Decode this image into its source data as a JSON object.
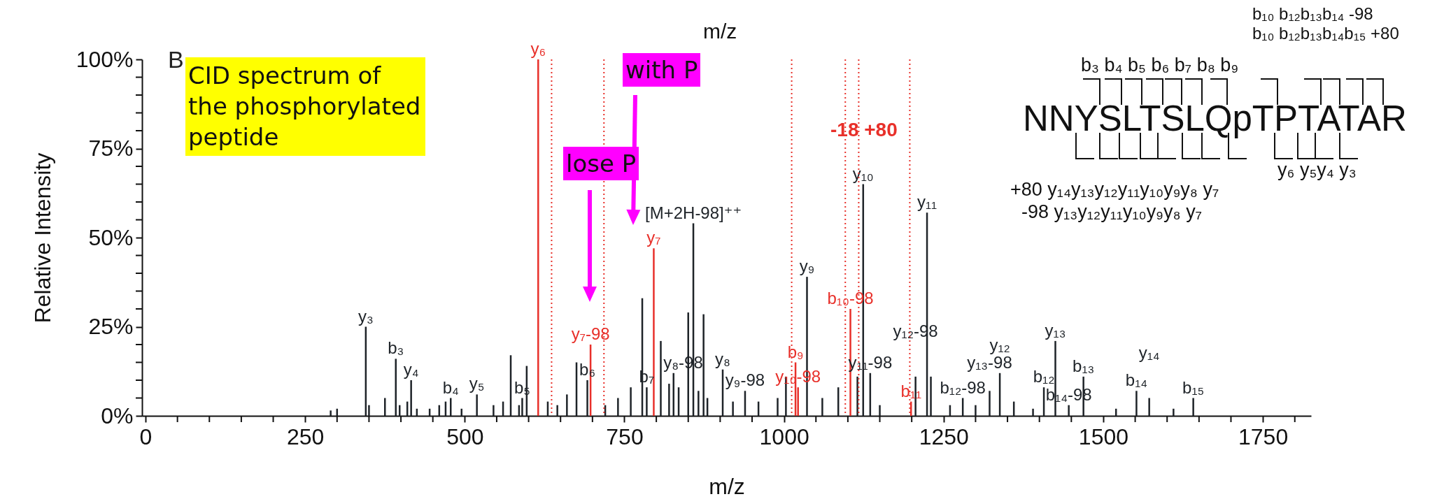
{
  "chart_data": {
    "type": "bar",
    "xlabel": "m/z",
    "ylabel": "Relative Intensity",
    "xlim": [
      0,
      1820
    ],
    "ylim": [
      0,
      100
    ],
    "xticks": [
      0,
      {
        "value": 50,
        "label": null
      },
      {
        "value": 100,
        "label": null
      },
      {
        "value": 150,
        "label": null
      },
      {
        "value": 200,
        "label": null
      },
      250,
      {
        "value": 300,
        "label": null
      },
      {
        "value": 350,
        "label": null
      },
      {
        "value": 400,
        "label": null
      },
      {
        "value": 450,
        "label": null
      },
      500,
      {
        "value": 550,
        "label": null
      },
      {
        "value": 600,
        "label": null
      },
      {
        "value": 650,
        "label": null
      },
      {
        "value": 700,
        "label": null
      },
      750,
      {
        "value": 800,
        "label": null
      },
      {
        "value": 850,
        "label": null
      },
      {
        "value": 900,
        "label": null
      },
      {
        "value": 950,
        "label": null
      },
      1000,
      {
        "value": 1050,
        "label": null
      },
      {
        "value": 1100,
        "label": null
      },
      {
        "value": 1150,
        "label": null
      },
      {
        "value": 1200,
        "label": null
      },
      1250,
      {
        "value": 1300,
        "label": null
      },
      {
        "value": 1350,
        "label": null
      },
      {
        "value": 1400,
        "label": null
      },
      {
        "value": 1450,
        "label": null
      },
      1500,
      {
        "value": 1550,
        "label": null
      },
      {
        "value": 1600,
        "label": null
      },
      {
        "value": 1650,
        "label": null
      },
      {
        "value": 1700,
        "label": null
      },
      1750,
      {
        "value": 1800,
        "label": null
      }
    ],
    "yticks": [
      {
        "value": 0,
        "label": "0%"
      },
      {
        "value": 5,
        "label": null
      },
      {
        "value": 10,
        "label": null
      },
      {
        "value": 15,
        "label": null
      },
      {
        "value": 20,
        "label": null
      },
      {
        "value": 25,
        "label": "25%"
      },
      {
        "value": 30,
        "label": null
      },
      {
        "value": 35,
        "label": null
      },
      {
        "value": 40,
        "label": null
      },
      {
        "value": 45,
        "label": null
      },
      {
        "value": 50,
        "label": "50%"
      },
      {
        "value": 55,
        "label": null
      },
      {
        "value": 60,
        "label": null
      },
      {
        "value": 65,
        "label": null
      },
      {
        "value": 70,
        "label": null
      },
      {
        "value": 75,
        "label": "75%"
      },
      {
        "value": 80,
        "label": null
      },
      {
        "value": 85,
        "label": null
      },
      {
        "value": 90,
        "label": null
      },
      {
        "value": 95,
        "label": null
      },
      {
        "value": 100,
        "label": "100%"
      }
    ],
    "x": [
      290,
      300,
      345,
      350,
      375,
      392,
      398,
      410,
      416,
      425,
      445,
      460,
      470,
      478,
      495,
      519,
      545,
      560,
      572,
      585,
      590,
      597,
      615,
      630,
      645,
      660,
      675,
      692,
      697,
      720,
      740,
      760,
      778,
      785,
      796,
      807,
      820,
      827,
      835,
      850,
      858,
      866,
      874,
      880,
      904,
      920,
      939,
      960,
      990,
      1003,
      1018,
      1022,
      1036,
      1060,
      1085,
      1104,
      1115,
      1124,
      1135,
      1150,
      1199,
      1206,
      1224,
      1230,
      1260,
      1280,
      1300,
      1322,
      1338,
      1360,
      1390,
      1407,
      1425,
      1446,
      1469,
      1520,
      1552,
      1572,
      1610,
      1641
    ],
    "values": [
      1.5,
      2,
      25,
      3,
      5,
      16,
      3,
      4,
      10,
      2,
      2,
      3,
      4,
      5,
      2,
      6,
      3,
      4,
      17,
      3,
      5,
      14,
      100,
      4,
      3,
      6,
      15,
      10,
      20,
      3,
      5,
      8,
      33,
      8,
      47,
      21,
      9,
      12,
      8,
      29,
      54,
      7,
      28.5,
      5,
      13,
      4,
      7,
      4,
      5,
      11,
      15,
      8,
      39,
      5,
      8,
      30,
      11,
      65,
      12,
      3,
      4,
      11,
      57,
      11,
      3,
      5,
      3,
      7,
      12,
      4,
      2,
      8,
      21,
      3,
      11,
      2,
      7,
      5,
      2,
      5
    ],
    "colors": [
      "#1e2328",
      "#1e2328",
      "#1e2328",
      "#1e2328",
      "#1e2328",
      "#1e2328",
      "#1e2328",
      "#1e2328",
      "#1e2328",
      "#1e2328",
      "#1e2328",
      "#1e2328",
      "#1e2328",
      "#1e2328",
      "#1e2328",
      "#1e2328",
      "#1e2328",
      "#1e2328",
      "#1e2328",
      "#1e2328",
      "#1e2328",
      "#1e2328",
      "#e8302a",
      "#1e2328",
      "#1e2328",
      "#1e2328",
      "#1e2328",
      "#1e2328",
      "#e8302a",
      "#1e2328",
      "#1e2328",
      "#1e2328",
      "#1e2328",
      "#1e2328",
      "#e8302a",
      "#1e2328",
      "#1e2328",
      "#1e2328",
      "#1e2328",
      "#1e2328",
      "#1e2328",
      "#1e2328",
      "#1e2328",
      "#1e2328",
      "#1e2328",
      "#1e2328",
      "#1e2328",
      "#1e2328",
      "#1e2328",
      "#1e2328",
      "#e8302a",
      "#e8302a",
      "#1e2328",
      "#1e2328",
      "#1e2328",
      "#e8302a",
      "#1e2328",
      "#1e2328",
      "#1e2328",
      "#1e2328",
      "#e8302a",
      "#1e2328",
      "#1e2328",
      "#1e2328",
      "#1e2328",
      "#1e2328",
      "#1e2328",
      "#1e2328",
      "#1e2328",
      "#1e2328",
      "#1e2328",
      "#1e2328",
      "#1e2328",
      "#1e2328",
      "#1e2328",
      "#1e2328",
      "#1e2328",
      "#1e2328",
      "#1e2328",
      "#1e2328"
    ],
    "value_labels": [
      null,
      null,
      "y₃",
      null,
      null,
      "b₃",
      null,
      null,
      "y₄",
      null,
      null,
      null,
      null,
      "b₄",
      null,
      "y₅",
      null,
      null,
      null,
      null,
      "b₅",
      null,
      "y₆",
      null,
      null,
      null,
      null,
      "b₆",
      "y₇-98",
      null,
      null,
      null,
      null,
      "b₇",
      "y₇",
      null,
      null,
      "y₈-98",
      null,
      null,
      "[M+2H-98]⁺⁺",
      null,
      null,
      null,
      "y₈",
      null,
      "y₉-98",
      null,
      null,
      null,
      "b₉",
      "y₁₀-98",
      "y₉",
      null,
      null,
      "b₁₀-98",
      null,
      "y₁₀",
      "y₁₁-98",
      null,
      "b₁₁",
      "y₁₂-98",
      "y₁₁",
      null,
      null,
      "b₁₂-98",
      null,
      "y₁₃-98",
      "y₁₂",
      null,
      null,
      "b₁₂",
      "y₁₃",
      "b₁₄-98",
      "b₁₃",
      null,
      "b₁₄",
      "y₁₄",
      null,
      "b₁₅"
    ],
    "ref_lines": [
      {
        "axis": "x",
        "value": 636,
        "color": "#e8302a",
        "line_style": "dotted"
      },
      {
        "axis": "x",
        "value": 718,
        "color": "#e8302a",
        "line_style": "dotted"
      },
      {
        "axis": "x",
        "value": 1012,
        "color": "#e8302a",
        "line_style": "dotted"
      },
      {
        "axis": "x",
        "value": 1096,
        "color": "#e8302a",
        "line_style": "dotted"
      },
      {
        "axis": "x",
        "value": 1117,
        "color": "#e8302a",
        "line_style": "dotted"
      },
      {
        "axis": "x",
        "value": 1197,
        "color": "#e8302a",
        "line_style": "dotted"
      }
    ],
    "annotations": [
      "B",
      "CID spectrum of the phosphorylated peptide",
      "lose P",
      "with P",
      "-18 +80",
      "m/z",
      "NNYSLTSLQpTPTATAR",
      "b₃ b₄ b₅ b₆ b₇ b₈ b₉",
      "b₁₀ b₁₂b₁₃b₁₄ -98",
      "b₁₀ b₁₂b₁₃b₁₄b₁₅ +80",
      "y₆ y₅y₄ y₃",
      "+80 y₁₄y₁₃y₁₂y₁₁y₁₀y₉y₈ y₇",
      "-98 y₁₃y₁₂y₁₁y₁₀y₉y₈ y₇"
    ]
  }
}
